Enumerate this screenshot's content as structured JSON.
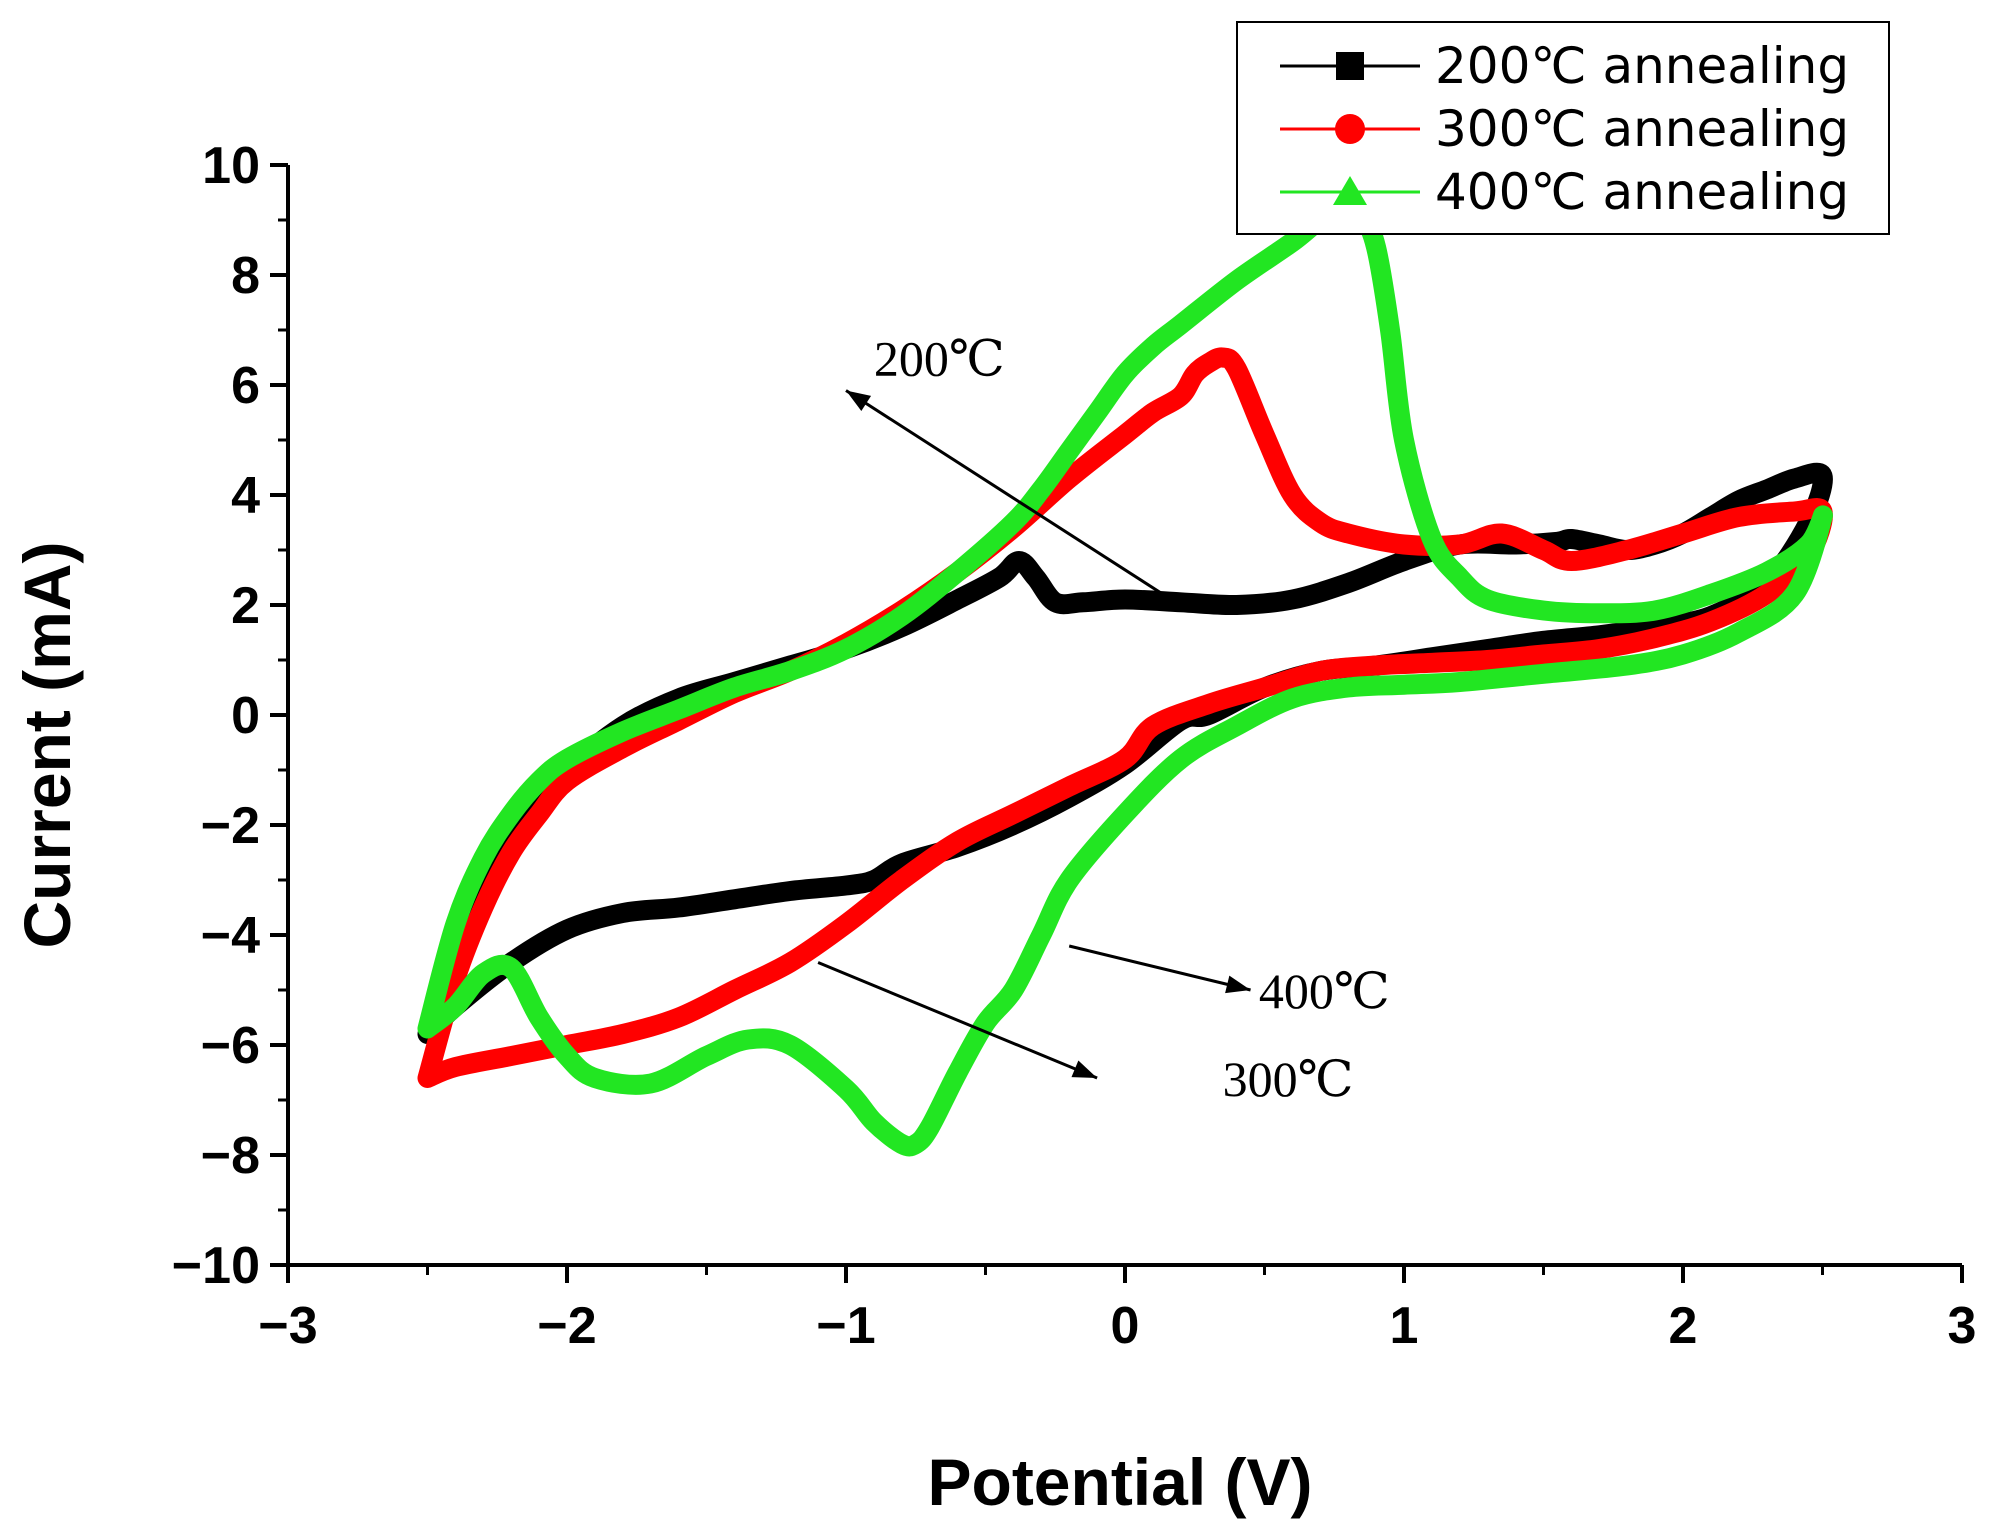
{
  "chart_data": {
    "type": "line",
    "title": "",
    "xlabel": "Potential (V)",
    "ylabel": "Current (mA)",
    "xlim": [
      -3,
      3
    ],
    "ylim": [
      -10,
      10
    ],
    "xticks": [
      -3,
      -2,
      -1,
      0,
      1,
      2,
      3
    ],
    "xtick_labels": [
      "−3",
      "−2",
      "−1",
      "0",
      "1",
      "2",
      "3"
    ],
    "yticks": [
      -10,
      -8,
      -6,
      -4,
      -2,
      0,
      2,
      4,
      6,
      8,
      10
    ],
    "ytick_labels": [
      "−10",
      "−8",
      "−6",
      "−4",
      "−2",
      "0",
      "2",
      "4",
      "6",
      "8",
      "10"
    ],
    "grid": false,
    "legend_position": "top-right",
    "series": [
      {
        "name": "200℃ annealing",
        "color": "#000000",
        "marker": "square",
        "x": [
          -2.5,
          -2.4,
          -2.3,
          -2.2,
          -2.1,
          -2.0,
          -1.8,
          -1.6,
          -1.4,
          -1.2,
          -1.0,
          -0.8,
          -0.6,
          -0.45,
          -0.38,
          -0.32,
          -0.25,
          -0.15,
          0.0,
          0.2,
          0.4,
          0.6,
          0.8,
          1.0,
          1.2,
          1.4,
          1.55,
          1.6,
          1.7,
          1.8,
          1.9,
          2.0,
          2.1,
          2.2,
          2.3,
          2.4,
          2.5,
          2.45,
          2.3,
          2.1,
          1.9,
          1.7,
          1.5,
          1.3,
          1.1,
          0.9,
          0.7,
          0.5,
          0.3,
          0.2,
          0.0,
          -0.2,
          -0.4,
          -0.6,
          -0.8,
          -0.9,
          -1.0,
          -1.2,
          -1.4,
          -1.6,
          -1.8,
          -2.0,
          -2.2,
          -2.4,
          -2.5
        ],
        "y": [
          -5.8,
          -4.2,
          -3.1,
          -2.3,
          -1.6,
          -1.0,
          -0.2,
          0.3,
          0.6,
          0.9,
          1.2,
          1.6,
          2.1,
          2.5,
          2.8,
          2.5,
          2.05,
          2.05,
          2.1,
          2.05,
          2.0,
          2.1,
          2.4,
          2.8,
          3.1,
          3.1,
          3.15,
          3.2,
          3.1,
          3.0,
          3.1,
          3.3,
          3.6,
          3.9,
          4.1,
          4.3,
          4.35,
          3.5,
          2.4,
          1.8,
          1.6,
          1.45,
          1.35,
          1.2,
          1.05,
          0.9,
          0.8,
          0.5,
          0.0,
          -0.1,
          -0.9,
          -1.5,
          -2.0,
          -2.4,
          -2.7,
          -3.0,
          -3.1,
          -3.2,
          -3.35,
          -3.5,
          -3.6,
          -3.9,
          -4.5,
          -5.3,
          -5.8
        ]
      },
      {
        "name": "300℃ annealing",
        "color": "#ff0000",
        "marker": "circle",
        "x": [
          -2.5,
          -2.4,
          -2.3,
          -2.2,
          -2.1,
          -2.0,
          -1.8,
          -1.6,
          -1.4,
          -1.2,
          -1.0,
          -0.8,
          -0.6,
          -0.4,
          -0.2,
          0.0,
          0.1,
          0.2,
          0.25,
          0.3,
          0.35,
          0.4,
          0.5,
          0.6,
          0.7,
          0.8,
          1.0,
          1.2,
          1.35,
          1.5,
          1.6,
          1.8,
          2.0,
          2.2,
          2.4,
          2.5,
          2.45,
          2.3,
          2.1,
          1.9,
          1.7,
          1.5,
          1.3,
          1.1,
          0.9,
          0.7,
          0.5,
          0.3,
          0.1,
          0.0,
          -0.2,
          -0.4,
          -0.6,
          -0.8,
          -1.0,
          -1.2,
          -1.4,
          -1.6,
          -1.8,
          -2.0,
          -2.2,
          -2.4,
          -2.5
        ],
        "y": [
          -6.6,
          -4.8,
          -3.5,
          -2.5,
          -1.8,
          -1.2,
          -0.6,
          -0.1,
          0.4,
          0.8,
          1.3,
          1.9,
          2.6,
          3.4,
          4.3,
          5.1,
          5.5,
          5.8,
          6.2,
          6.4,
          6.5,
          6.3,
          5.1,
          4.0,
          3.5,
          3.3,
          3.1,
          3.1,
          3.3,
          3.0,
          2.8,
          3.0,
          3.3,
          3.6,
          3.7,
          3.7,
          2.9,
          2.2,
          1.7,
          1.4,
          1.2,
          1.1,
          1.0,
          0.95,
          0.9,
          0.8,
          0.5,
          0.2,
          -0.2,
          -0.8,
          -1.3,
          -1.8,
          -2.3,
          -3.0,
          -3.8,
          -4.5,
          -5.0,
          -5.5,
          -5.8,
          -6.0,
          -6.2,
          -6.4,
          -6.6
        ]
      },
      {
        "name": "400℃ annealing",
        "color": "#22e622",
        "marker": "triangle",
        "x": [
          -2.5,
          -2.4,
          -2.3,
          -2.2,
          -2.1,
          -2.0,
          -1.8,
          -1.6,
          -1.4,
          -1.2,
          -1.0,
          -0.8,
          -0.6,
          -0.4,
          -0.3,
          -0.2,
          -0.1,
          0.0,
          0.1,
          0.2,
          0.4,
          0.6,
          0.7,
          0.75,
          0.8,
          0.85,
          0.9,
          0.95,
          1.0,
          1.1,
          1.2,
          1.3,
          1.5,
          1.7,
          1.9,
          2.1,
          2.3,
          2.45,
          2.5,
          2.4,
          2.2,
          2.0,
          1.8,
          1.5,
          1.2,
          1.0,
          0.8,
          0.6,
          0.4,
          0.2,
          0.0,
          -0.2,
          -0.3,
          -0.4,
          -0.5,
          -0.6,
          -0.7,
          -0.75,
          -0.8,
          -0.9,
          -1.0,
          -1.2,
          -1.35,
          -1.5,
          -1.7,
          -1.9,
          -2.0,
          -2.1,
          -2.2,
          -2.3,
          -2.4,
          -2.5
        ],
        "y": [
          -5.7,
          -3.8,
          -2.6,
          -1.8,
          -1.2,
          -0.8,
          -0.3,
          0.1,
          0.5,
          0.8,
          1.2,
          1.8,
          2.6,
          3.5,
          4.1,
          4.8,
          5.5,
          6.2,
          6.7,
          7.1,
          7.9,
          8.6,
          9.0,
          9.0,
          9.3,
          9.1,
          8.5,
          7.0,
          5.0,
          3.2,
          2.5,
          2.1,
          1.9,
          1.85,
          1.9,
          2.2,
          2.6,
          3.1,
          3.6,
          2.2,
          1.5,
          1.1,
          0.9,
          0.75,
          0.6,
          0.55,
          0.5,
          0.3,
          -0.2,
          -0.8,
          -1.8,
          -3.0,
          -4.0,
          -5.0,
          -5.6,
          -6.5,
          -7.5,
          -7.8,
          -7.8,
          -7.4,
          -6.8,
          -6.0,
          -5.9,
          -6.2,
          -6.7,
          -6.6,
          -6.2,
          -5.5,
          -4.6,
          -4.7,
          -5.3,
          -5.7
        ]
      }
    ],
    "annotations": [
      {
        "text": "200℃",
        "label_at": [
          -0.9,
          6.5
        ],
        "arrow_to": [
          -1.0,
          5.9
        ],
        "arrow_from": [
          0.15,
          2.15
        ]
      },
      {
        "text": "300℃",
        "label_at": [
          0.35,
          -6.6
        ],
        "arrow_to": [
          -0.1,
          -6.6
        ],
        "arrow_from": [
          -1.1,
          -4.5
        ]
      },
      {
        "text": "400℃",
        "label_at": [
          0.48,
          -5.0
        ],
        "arrow_to": [
          0.45,
          -5.0
        ],
        "arrow_from": [
          -0.2,
          -4.2
        ]
      }
    ]
  }
}
